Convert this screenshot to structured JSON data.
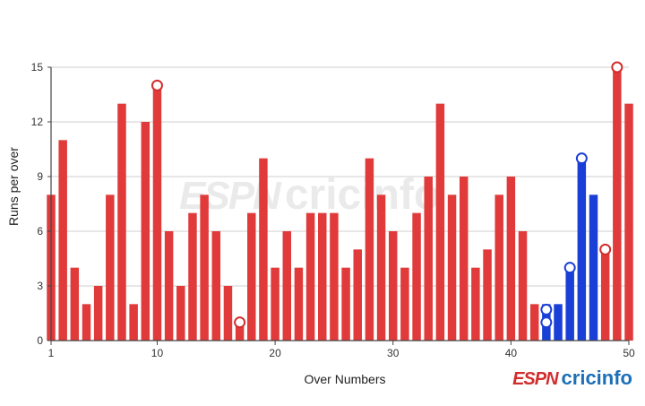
{
  "chart_data": {
    "type": "bar",
    "xlabel": "Over Numbers",
    "ylabel": "Runs per over",
    "xlim": [
      1,
      50
    ],
    "ylim": [
      0,
      15
    ],
    "x_ticks": [
      1,
      10,
      20,
      30,
      40,
      50
    ],
    "y_ticks": [
      0,
      3,
      6,
      9,
      12,
      15
    ],
    "grid": "horizontal",
    "series": [
      {
        "color": "#e03a3a",
        "values": [
          8,
          11,
          4,
          2,
          3,
          8,
          13,
          2,
          12,
          14,
          6,
          3,
          7,
          8,
          6,
          3,
          1,
          7,
          10,
          4,
          6,
          4,
          7,
          7,
          7,
          4,
          5,
          10,
          8,
          6,
          4,
          7,
          9,
          13,
          8,
          9,
          4,
          5,
          8,
          9,
          6,
          2
        ]
      },
      {
        "color": "#1a3fd6",
        "values": [
          2,
          2,
          4,
          10,
          8
        ]
      },
      {
        "color": "#e03a3a",
        "values": [
          5,
          15,
          13
        ]
      }
    ],
    "wicket_markers": [
      {
        "over": 10,
        "runs": 14
      },
      {
        "over": 17,
        "runs": 1
      },
      {
        "over": 43,
        "runs": 1
      },
      {
        "over": 43,
        "runs": 1.7
      },
      {
        "over": 45,
        "runs": 4
      },
      {
        "over": 46,
        "runs": 10
      },
      {
        "over": 48,
        "runs": 5
      },
      {
        "over": 49,
        "runs": 15
      }
    ]
  },
  "branding": {
    "logo_espn": "ESPN",
    "logo_cricinfo": "cricinfo",
    "watermark_espn": "ESPN",
    "watermark_cricinfo": "cricinfo"
  }
}
